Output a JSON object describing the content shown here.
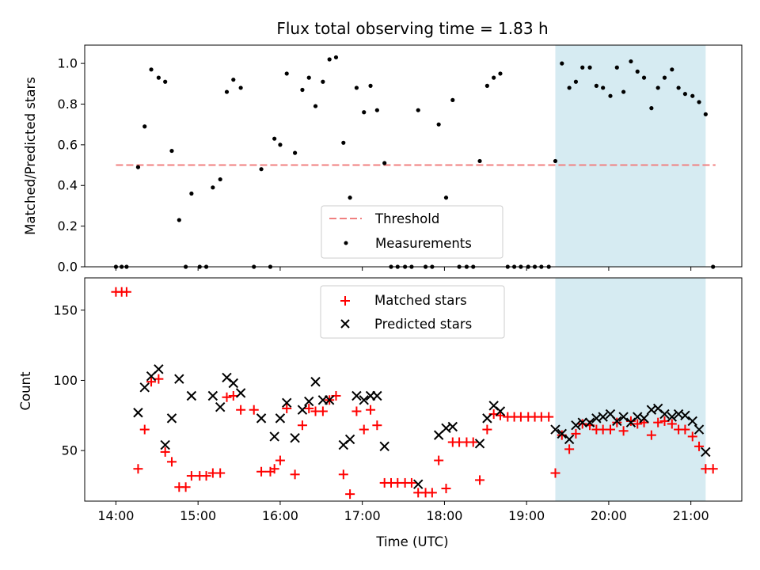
{
  "chart_data": [
    {
      "type": "scatter",
      "title": "Flux total observing time = 1.83 h",
      "xlabel": "",
      "ylabel": "Matched/Predicted stars",
      "xlim": [
        13.62,
        21.62
      ],
      "ylim": [
        0,
        1.09
      ],
      "yticks": [
        0.0,
        0.2,
        0.4,
        0.6,
        0.8,
        1.0
      ],
      "ytick_labels": [
        "0.0",
        "0.2",
        "0.4",
        "0.6",
        "0.8",
        "1.0"
      ],
      "shaded_region": [
        19.35,
        21.18
      ],
      "shade_color": "#add8e6",
      "threshold": {
        "name": "Threshold",
        "value": 0.5,
        "x_range": [
          14.0,
          21.3
        ],
        "color": "#f08080"
      },
      "legend": [
        "Threshold",
        "Measurements"
      ],
      "legend_position": "lower-center",
      "series": [
        {
          "name": "Measurements",
          "marker": "dot",
          "color": "#000000",
          "points": [
            [
              14.0,
              0
            ],
            [
              14.07,
              0
            ],
            [
              14.13,
              0
            ],
            [
              14.27,
              0.49
            ],
            [
              14.35,
              0.69
            ],
            [
              14.43,
              0.97
            ],
            [
              14.52,
              0.93
            ],
            [
              14.6,
              0.91
            ],
            [
              14.68,
              0.57
            ],
            [
              14.77,
              0.23
            ],
            [
              14.85,
              0
            ],
            [
              14.92,
              0.36
            ],
            [
              15.02,
              0
            ],
            [
              15.1,
              0
            ],
            [
              15.18,
              0.39
            ],
            [
              15.27,
              0.43
            ],
            [
              15.35,
              0.86
            ],
            [
              15.43,
              0.92
            ],
            [
              15.52,
              0.88
            ],
            [
              15.68,
              0
            ],
            [
              15.77,
              0.48
            ],
            [
              15.88,
              0
            ],
            [
              15.93,
              0.63
            ],
            [
              16.0,
              0.6
            ],
            [
              16.08,
              0.95
            ],
            [
              16.18,
              0.56
            ],
            [
              16.27,
              0.87
            ],
            [
              16.35,
              0.93
            ],
            [
              16.43,
              0.79
            ],
            [
              16.52,
              0.91
            ],
            [
              16.6,
              1.02
            ],
            [
              16.68,
              1.03
            ],
            [
              16.77,
              0.61
            ],
            [
              16.85,
              0.34
            ],
            [
              16.93,
              0.88
            ],
            [
              17.02,
              0.76
            ],
            [
              17.1,
              0.89
            ],
            [
              17.18,
              0.77
            ],
            [
              17.27,
              0.51
            ],
            [
              17.35,
              0
            ],
            [
              17.43,
              0
            ],
            [
              17.52,
              0
            ],
            [
              17.6,
              0
            ],
            [
              17.68,
              0.77
            ],
            [
              17.77,
              0
            ],
            [
              17.85,
              0
            ],
            [
              17.93,
              0.7
            ],
            [
              18.02,
              0.34
            ],
            [
              18.1,
              0.82
            ],
            [
              18.18,
              0
            ],
            [
              18.27,
              0
            ],
            [
              18.35,
              0
            ],
            [
              18.43,
              0.52
            ],
            [
              18.52,
              0.89
            ],
            [
              18.6,
              0.93
            ],
            [
              18.68,
              0.95
            ],
            [
              18.77,
              0
            ],
            [
              18.85,
              0
            ],
            [
              18.93,
              0
            ],
            [
              19.02,
              0
            ],
            [
              19.1,
              0
            ],
            [
              19.18,
              0
            ],
            [
              19.27,
              0
            ],
            [
              19.35,
              0.52
            ],
            [
              19.43,
              1.0
            ],
            [
              19.52,
              0.88
            ],
            [
              19.6,
              0.91
            ],
            [
              19.68,
              0.98
            ],
            [
              19.77,
              0.98
            ],
            [
              19.85,
              0.89
            ],
            [
              19.93,
              0.88
            ],
            [
              20.02,
              0.84
            ],
            [
              20.1,
              0.98
            ],
            [
              20.18,
              0.86
            ],
            [
              20.27,
              1.01
            ],
            [
              20.35,
              0.96
            ],
            [
              20.43,
              0.93
            ],
            [
              20.52,
              0.78
            ],
            [
              20.6,
              0.88
            ],
            [
              20.68,
              0.93
            ],
            [
              20.77,
              0.97
            ],
            [
              20.85,
              0.88
            ],
            [
              20.93,
              0.85
            ],
            [
              21.02,
              0.84
            ],
            [
              21.1,
              0.81
            ],
            [
              21.18,
              0.75
            ],
            [
              21.27,
              0
            ]
          ]
        }
      ]
    },
    {
      "type": "scatter",
      "title": "",
      "xlabel": "Time (UTC)",
      "ylabel": "Count",
      "xlim": [
        13.62,
        21.62
      ],
      "ylim": [
        14,
        173
      ],
      "yticks": [
        50,
        100,
        150
      ],
      "ytick_labels": [
        "50",
        "100",
        "150"
      ],
      "xticks": [
        14,
        15,
        16,
        17,
        18,
        19,
        20,
        21
      ],
      "xtick_labels": [
        "14:00",
        "15:00",
        "16:00",
        "17:00",
        "18:00",
        "19:00",
        "20:00",
        "21:00"
      ],
      "shaded_region": [
        19.35,
        21.18
      ],
      "shade_color": "#add8e6",
      "legend": [
        "Matched stars",
        "Predicted stars"
      ],
      "legend_position": "upper-center",
      "series": [
        {
          "name": "Matched stars",
          "marker": "plus",
          "color": "#ff0000",
          "points": [
            [
              14.0,
              163
            ],
            [
              14.07,
              163
            ],
            [
              14.13,
              163
            ],
            [
              14.27,
              37
            ],
            [
              14.35,
              65
            ],
            [
              14.43,
              99
            ],
            [
              14.52,
              101
            ],
            [
              14.6,
              49
            ],
            [
              14.68,
              42
            ],
            [
              14.77,
              24
            ],
            [
              14.85,
              24
            ],
            [
              14.92,
              32
            ],
            [
              15.02,
              32
            ],
            [
              15.1,
              32
            ],
            [
              15.18,
              34
            ],
            [
              15.27,
              34
            ],
            [
              15.35,
              88
            ],
            [
              15.43,
              89
            ],
            [
              15.52,
              79
            ],
            [
              15.68,
              79
            ],
            [
              15.77,
              35
            ],
            [
              15.88,
              35
            ],
            [
              15.93,
              37
            ],
            [
              16.0,
              43
            ],
            [
              16.08,
              80
            ],
            [
              16.18,
              33
            ],
            [
              16.27,
              68
            ],
            [
              16.35,
              80
            ],
            [
              16.43,
              78
            ],
            [
              16.52,
              78
            ],
            [
              16.6,
              86
            ],
            [
              16.68,
              89
            ],
            [
              16.77,
              33
            ],
            [
              16.85,
              19
            ],
            [
              16.93,
              78
            ],
            [
              17.02,
              65
            ],
            [
              17.1,
              79
            ],
            [
              17.18,
              68
            ],
            [
              17.27,
              27
            ],
            [
              17.35,
              27
            ],
            [
              17.43,
              27
            ],
            [
              17.52,
              27
            ],
            [
              17.6,
              27
            ],
            [
              17.68,
              20
            ],
            [
              17.77,
              20
            ],
            [
              17.85,
              20
            ],
            [
              17.93,
              43
            ],
            [
              18.02,
              23
            ],
            [
              18.1,
              56
            ],
            [
              18.18,
              56
            ],
            [
              18.27,
              56
            ],
            [
              18.35,
              56
            ],
            [
              18.43,
              29
            ],
            [
              18.52,
              65
            ],
            [
              18.6,
              76
            ],
            [
              18.68,
              75
            ],
            [
              18.77,
              74
            ],
            [
              18.85,
              74
            ],
            [
              18.93,
              74
            ],
            [
              19.02,
              74
            ],
            [
              19.1,
              74
            ],
            [
              19.18,
              74
            ],
            [
              19.27,
              74
            ],
            [
              19.35,
              34
            ],
            [
              19.43,
              61
            ],
            [
              19.52,
              51
            ],
            [
              19.6,
              62
            ],
            [
              19.68,
              69
            ],
            [
              19.77,
              68
            ],
            [
              19.85,
              65
            ],
            [
              19.93,
              65
            ],
            [
              20.02,
              65
            ],
            [
              20.1,
              70
            ],
            [
              20.18,
              64
            ],
            [
              20.27,
              71
            ],
            [
              20.35,
              69
            ],
            [
              20.43,
              70
            ],
            [
              20.52,
              61
            ],
            [
              20.6,
              70
            ],
            [
              20.68,
              71
            ],
            [
              20.77,
              69
            ],
            [
              20.85,
              65
            ],
            [
              20.93,
              65
            ],
            [
              21.02,
              60
            ],
            [
              21.1,
              53
            ],
            [
              21.18,
              37
            ],
            [
              21.27,
              37
            ]
          ]
        },
        {
          "name": "Predicted stars",
          "marker": "x",
          "color": "#000000",
          "points": [
            [
              14.27,
              77
            ],
            [
              14.35,
              95
            ],
            [
              14.43,
              103
            ],
            [
              14.52,
              108
            ],
            [
              14.6,
              54
            ],
            [
              14.68,
              73
            ],
            [
              14.77,
              101
            ],
            [
              14.92,
              89
            ],
            [
              15.18,
              89
            ],
            [
              15.27,
              81
            ],
            [
              15.35,
              102
            ],
            [
              15.43,
              98
            ],
            [
              15.52,
              91
            ],
            [
              15.77,
              73
            ],
            [
              15.93,
              60
            ],
            [
              16.0,
              73
            ],
            [
              16.08,
              84
            ],
            [
              16.18,
              59
            ],
            [
              16.27,
              79
            ],
            [
              16.35,
              85
            ],
            [
              16.43,
              99
            ],
            [
              16.52,
              86
            ],
            [
              16.6,
              86
            ],
            [
              16.77,
              54
            ],
            [
              16.85,
              58
            ],
            [
              16.93,
              89
            ],
            [
              17.02,
              86
            ],
            [
              17.1,
              89
            ],
            [
              17.18,
              89
            ],
            [
              17.27,
              53
            ],
            [
              17.68,
              26
            ],
            [
              17.93,
              61
            ],
            [
              18.02,
              66
            ],
            [
              18.1,
              67
            ],
            [
              18.43,
              55
            ],
            [
              18.52,
              73
            ],
            [
              18.6,
              82
            ],
            [
              18.68,
              78
            ],
            [
              19.35,
              65
            ],
            [
              19.43,
              62
            ],
            [
              19.52,
              58
            ],
            [
              19.6,
              68
            ],
            [
              19.68,
              70
            ],
            [
              19.77,
              70
            ],
            [
              19.85,
              73
            ],
            [
              19.93,
              74
            ],
            [
              20.02,
              76
            ],
            [
              20.1,
              71
            ],
            [
              20.18,
              74
            ],
            [
              20.27,
              70
            ],
            [
              20.35,
              74
            ],
            [
              20.43,
              73
            ],
            [
              20.52,
              79
            ],
            [
              20.6,
              80
            ],
            [
              20.68,
              76
            ],
            [
              20.77,
              74
            ],
            [
              20.85,
              76
            ],
            [
              20.93,
              75
            ],
            [
              21.02,
              71
            ],
            [
              21.1,
              65
            ],
            [
              21.18,
              49
            ]
          ]
        }
      ]
    }
  ]
}
